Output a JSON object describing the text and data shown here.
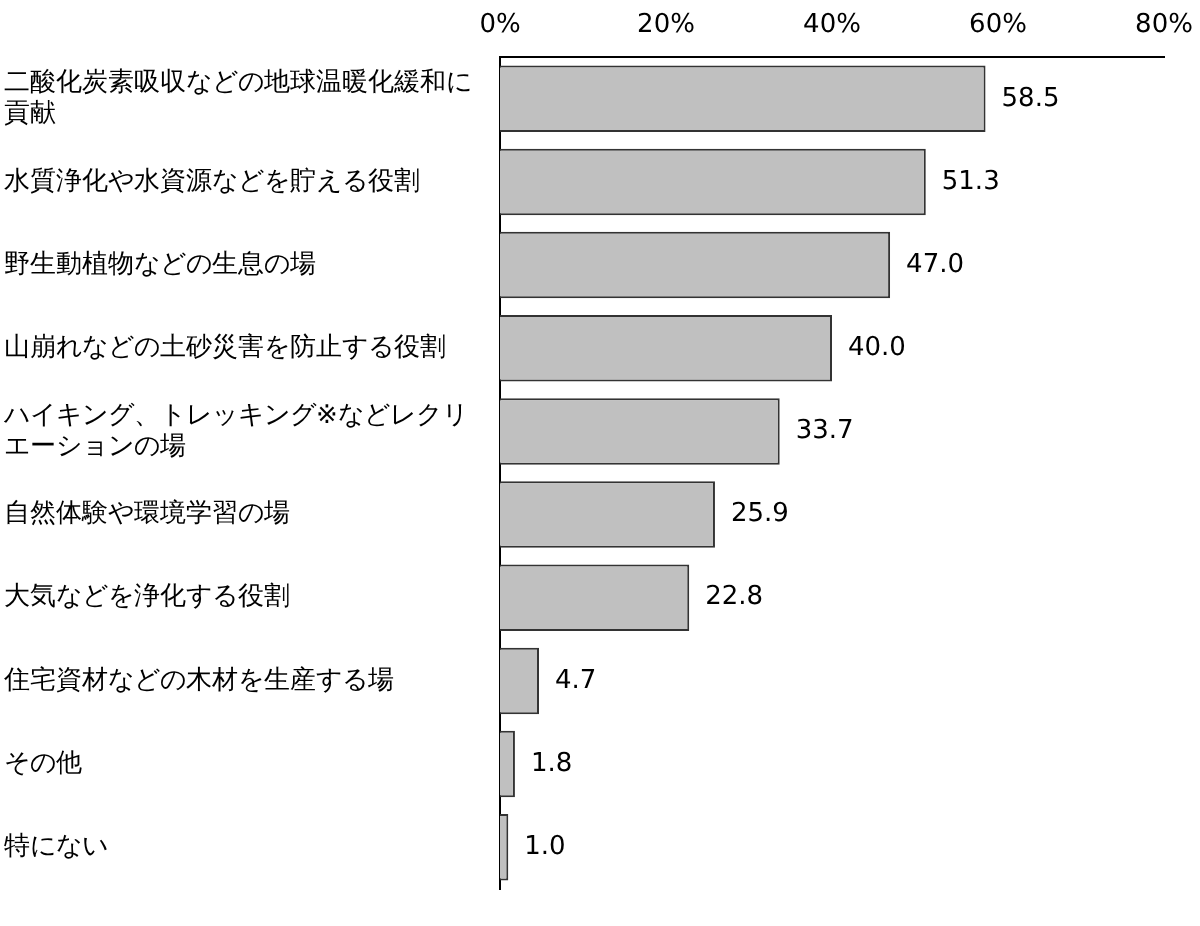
{
  "chart_data": {
    "type": "bar",
    "orientation": "horizontal",
    "categories": [
      "二酸化炭素吸収などの地球温暖化緩和に貢献",
      "水質浄化や水資源などを貯える役割",
      "野生動植物などの生息の場",
      "山崩れなどの土砂災害を防止する役割",
      "ハイキング、トレッキング※などレクリエーションの場",
      "自然体験や環境学習の場",
      "大気などを浄化する役割",
      "住宅資材などの木材を生産する場",
      "その他",
      "特にない"
    ],
    "values": [
      58.5,
      51.3,
      47.0,
      40.0,
      33.7,
      25.9,
      22.8,
      4.7,
      1.8,
      1.0
    ],
    "value_labels": [
      "58.5",
      "51.3",
      "47.0",
      "40.0",
      "33.7",
      "25.9",
      "22.8",
      "4.7",
      "1.8",
      "1.0"
    ],
    "color": "#c0c0c0",
    "xlim": [
      0,
      80
    ],
    "xticks": [
      {
        "value": 0,
        "label": "0%"
      },
      {
        "value": 20,
        "label": "20%"
      },
      {
        "value": 40,
        "label": "40%"
      },
      {
        "value": 60,
        "label": "60%"
      },
      {
        "value": 80,
        "label": "80%"
      }
    ],
    "grid": false,
    "legend": false
  }
}
